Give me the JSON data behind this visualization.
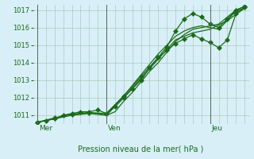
{
  "background_color": "#d8eff8",
  "grid_color": "#aaccbb",
  "line_color": "#1a6b1a",
  "marker_color": "#1a6b1a",
  "xlabel_text": "Pression niveau de la mer( hPa )",
  "ylim": [
    1010.5,
    1017.3
  ],
  "yticks": [
    1011,
    1012,
    1013,
    1014,
    1015,
    1016,
    1017
  ],
  "day_labels": [
    "Mer",
    "Ven",
    "Jeu"
  ],
  "day_positions": [
    0,
    8,
    20
  ],
  "xlim": [
    -0.5,
    24.5
  ],
  "series": [
    {
      "x": [
        0,
        1,
        2,
        3,
        4,
        5,
        6,
        7,
        8,
        9,
        10,
        11,
        12,
        13,
        14,
        15,
        16,
        17,
        18,
        19,
        20,
        21,
        22,
        23,
        24
      ],
      "y": [
        1010.6,
        1010.7,
        1010.8,
        1011.0,
        1011.1,
        1011.2,
        1011.2,
        1011.3,
        1011.1,
        1011.5,
        1012.0,
        1012.5,
        1013.0,
        1013.7,
        1014.3,
        1014.9,
        1015.8,
        1016.5,
        1016.8,
        1016.6,
        1016.2,
        1016.0,
        1016.5,
        1017.0,
        1017.2
      ],
      "marker": "D",
      "markersize": 3
    },
    {
      "x": [
        0,
        1,
        2,
        3,
        4,
        5,
        6,
        7,
        8,
        9,
        10,
        11,
        12,
        13,
        14,
        15,
        16,
        17,
        18,
        19,
        20,
        21,
        22,
        23,
        24
      ],
      "y": [
        1010.6,
        1010.7,
        1010.8,
        1011.0,
        1011.05,
        1011.1,
        1011.15,
        1011.1,
        1011.0,
        1011.2,
        1011.8,
        1012.3,
        1012.9,
        1013.5,
        1014.0,
        1014.6,
        1015.2,
        1015.6,
        1015.9,
        1016.0,
        1016.1,
        1016.2,
        1016.6,
        1017.0,
        1017.2
      ],
      "marker": null,
      "markersize": 0
    },
    {
      "x": [
        0,
        2,
        4,
        6,
        8,
        10,
        12,
        14,
        16,
        18,
        20,
        22,
        24
      ],
      "y": [
        1010.6,
        1010.8,
        1011.0,
        1011.1,
        1011.0,
        1012.0,
        1013.1,
        1014.2,
        1015.3,
        1015.7,
        1015.9,
        1016.4,
        1017.1
      ],
      "marker": null,
      "markersize": 0
    },
    {
      "x": [
        0,
        2,
        4,
        6,
        8,
        10,
        12,
        14,
        15,
        16,
        17,
        18,
        19,
        20,
        21,
        22,
        23,
        24
      ],
      "y": [
        1010.6,
        1010.85,
        1011.05,
        1011.15,
        1011.1,
        1012.1,
        1013.2,
        1014.3,
        1014.7,
        1015.1,
        1015.35,
        1015.6,
        1015.35,
        1015.15,
        1014.85,
        1015.3,
        1016.8,
        1017.15
      ],
      "marker": "D",
      "markersize": 3
    },
    {
      "x": [
        8,
        9,
        10,
        11,
        12,
        13,
        14,
        15,
        16,
        17,
        18,
        19,
        20,
        21,
        22,
        23,
        24
      ],
      "y": [
        1011.1,
        1011.6,
        1012.1,
        1012.7,
        1013.3,
        1013.9,
        1014.5,
        1015.0,
        1015.5,
        1015.8,
        1016.0,
        1016.1,
        1016.0,
        1015.9,
        1016.4,
        1016.95,
        1017.1
      ],
      "marker": null,
      "markersize": 0
    }
  ]
}
